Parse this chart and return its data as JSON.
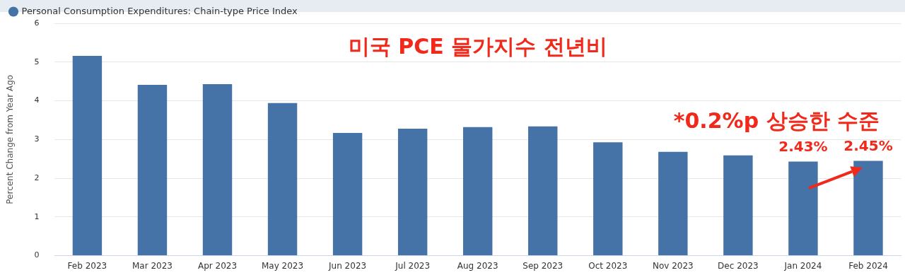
{
  "chart_data": {
    "type": "bar",
    "title": "미국 PCE 물가지수 전년비",
    "ylabel": "Percent Change from Year Ago",
    "categories": [
      "Feb 2023",
      "Mar 2023",
      "Apr 2023",
      "May 2023",
      "Jun 2023",
      "Jul 2023",
      "Aug 2023",
      "Sep 2023",
      "Oct 2023",
      "Nov 2023",
      "Dec 2023",
      "Jan 2024",
      "Feb 2024"
    ],
    "series": [
      {
        "name": "Personal Consumption Expenditures: Chain-type Price Index",
        "color": "#4572a7",
        "values": [
          5.16,
          4.41,
          4.43,
          3.94,
          3.17,
          3.28,
          3.32,
          3.34,
          2.93,
          2.68,
          2.59,
          2.43,
          2.45
        ],
        "value_labels": [
          null,
          null,
          null,
          null,
          null,
          null,
          null,
          null,
          null,
          null,
          null,
          "2.43%",
          "2.45%"
        ]
      }
    ],
    "ylim": [
      0,
      6
    ],
    "yticks": [
      0,
      1,
      2,
      3,
      4,
      5,
      6
    ],
    "grid": "y",
    "legend": "top left",
    "annotations": [
      "*0.2%p 상승한 수준"
    ]
  }
}
